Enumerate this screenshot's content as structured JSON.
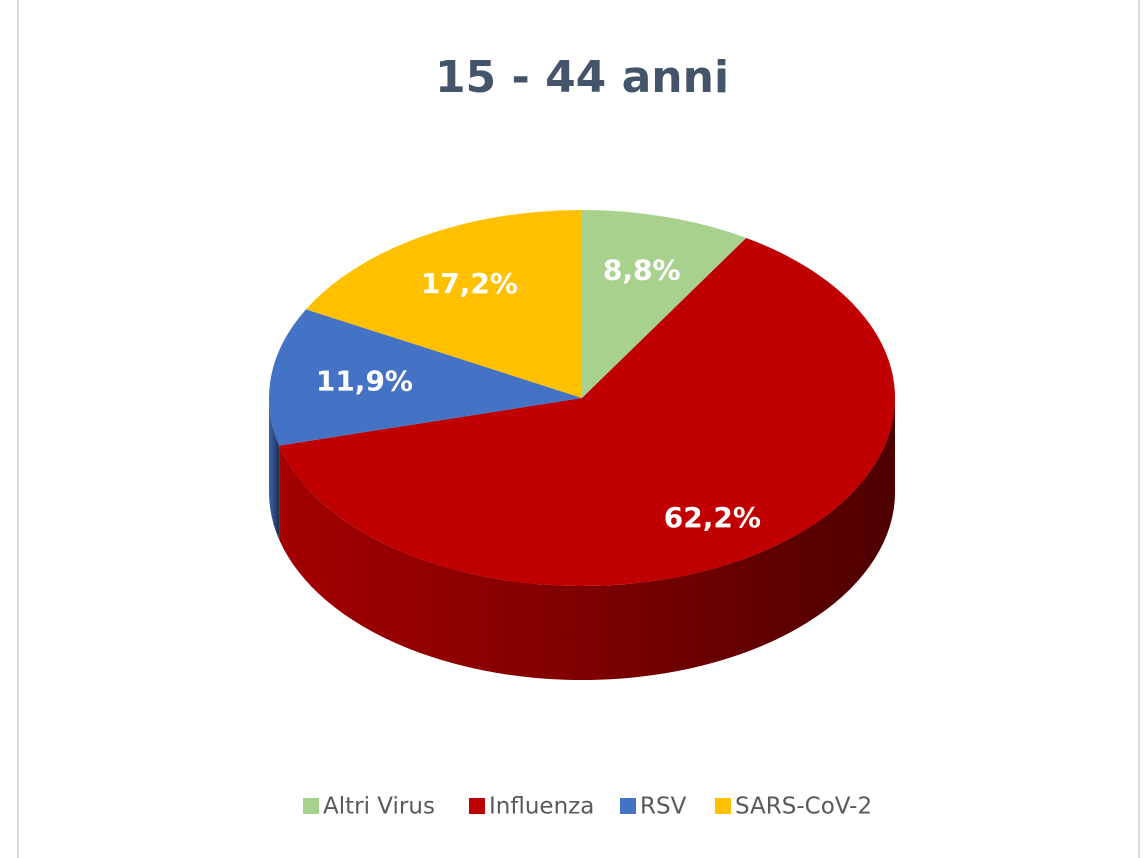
{
  "chart_data": {
    "type": "pie",
    "title": "15 - 44 anni",
    "categories": [
      "Altri Virus",
      "Influenza",
      "RSV",
      "SARS-CoV-2"
    ],
    "values": [
      8.8,
      62.2,
      11.9,
      17.2
    ],
    "value_labels": [
      "8,8%",
      "62,2%",
      "11,9%",
      "17,2%"
    ],
    "colors": [
      "#a9d18e",
      "#c00000",
      "#4472c4",
      "#ffc000"
    ]
  }
}
